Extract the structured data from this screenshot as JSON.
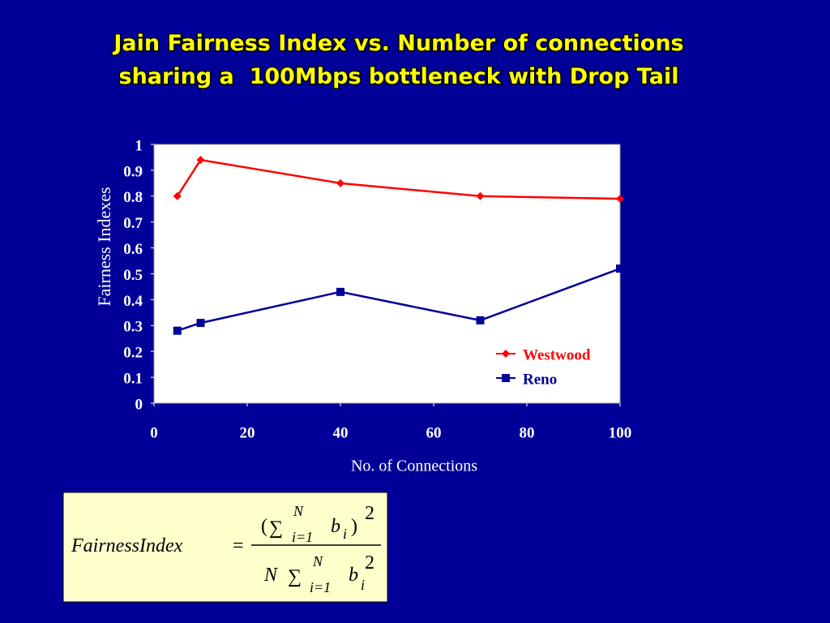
{
  "chart_data": {
    "type": "line",
    "title": [
      "Jain Fairness Index vs. Number of connections",
      "sharing a  100Mbps bottleneck with Drop Tail"
    ],
    "x_label": "No. of Connections",
    "y_label": "Fairness Indexes",
    "x": [
      5,
      10,
      40,
      70,
      100
    ],
    "series": [
      {
        "name": "Westwood",
        "color": "#ff0000",
        "marker": "diamond",
        "values": [
          0.8,
          0.94,
          0.85,
          0.8,
          0.79
        ]
      },
      {
        "name": "Reno",
        "color": "#000099",
        "marker": "square",
        "values": [
          0.28,
          0.31,
          0.43,
          0.32,
          0.52
        ]
      }
    ],
    "xlim": [
      0,
      100
    ],
    "xticks": [
      0,
      20,
      40,
      60,
      80,
      100
    ],
    "ylim": [
      0,
      1
    ],
    "yticks": [
      0,
      0.1,
      0.2,
      0.3,
      0.4,
      0.5,
      0.6,
      0.7,
      0.8,
      0.9,
      1
    ],
    "grid": false,
    "legend": "lower right"
  },
  "formula": {
    "lhs": "FairnessIndex",
    "eq": "=",
    "num": {
      "open": "(",
      "sum": "∑",
      "upper": "N",
      "lower": "i=1",
      "var": "b",
      "sub": "i",
      "close": ")",
      "power": "2"
    },
    "den": {
      "factor": "N",
      "sum": "∑",
      "upper": "N",
      "lower": "i=1",
      "var": "b",
      "sub": "i",
      "power": "2"
    }
  }
}
